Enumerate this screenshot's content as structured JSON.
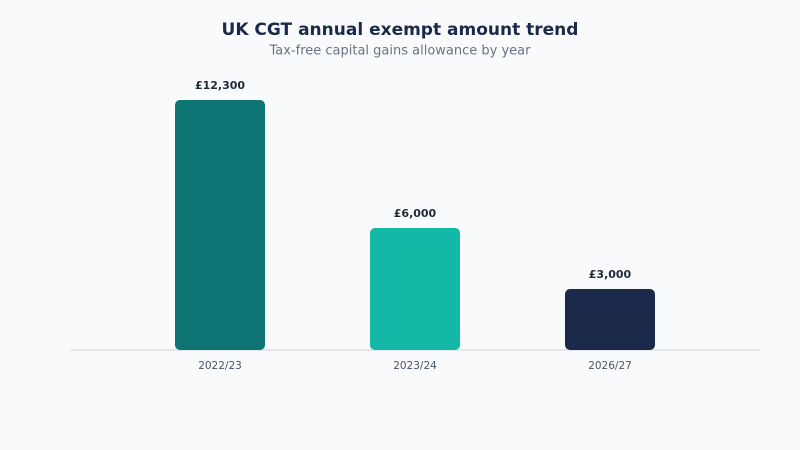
{
  "chart_data": {
    "type": "bar",
    "title": "UK CGT annual exempt amount trend",
    "subtitle": "Tax-free capital gains allowance by year",
    "categories": [
      "2022/23",
      "2023/24",
      "2026/27"
    ],
    "values": [
      12300,
      6000,
      3000
    ],
    "value_labels": [
      "£12,300",
      "£6,000",
      "£3,000"
    ],
    "colors": [
      "#0e7373",
      "#14b8a6",
      "#1b2a4a"
    ]
  }
}
